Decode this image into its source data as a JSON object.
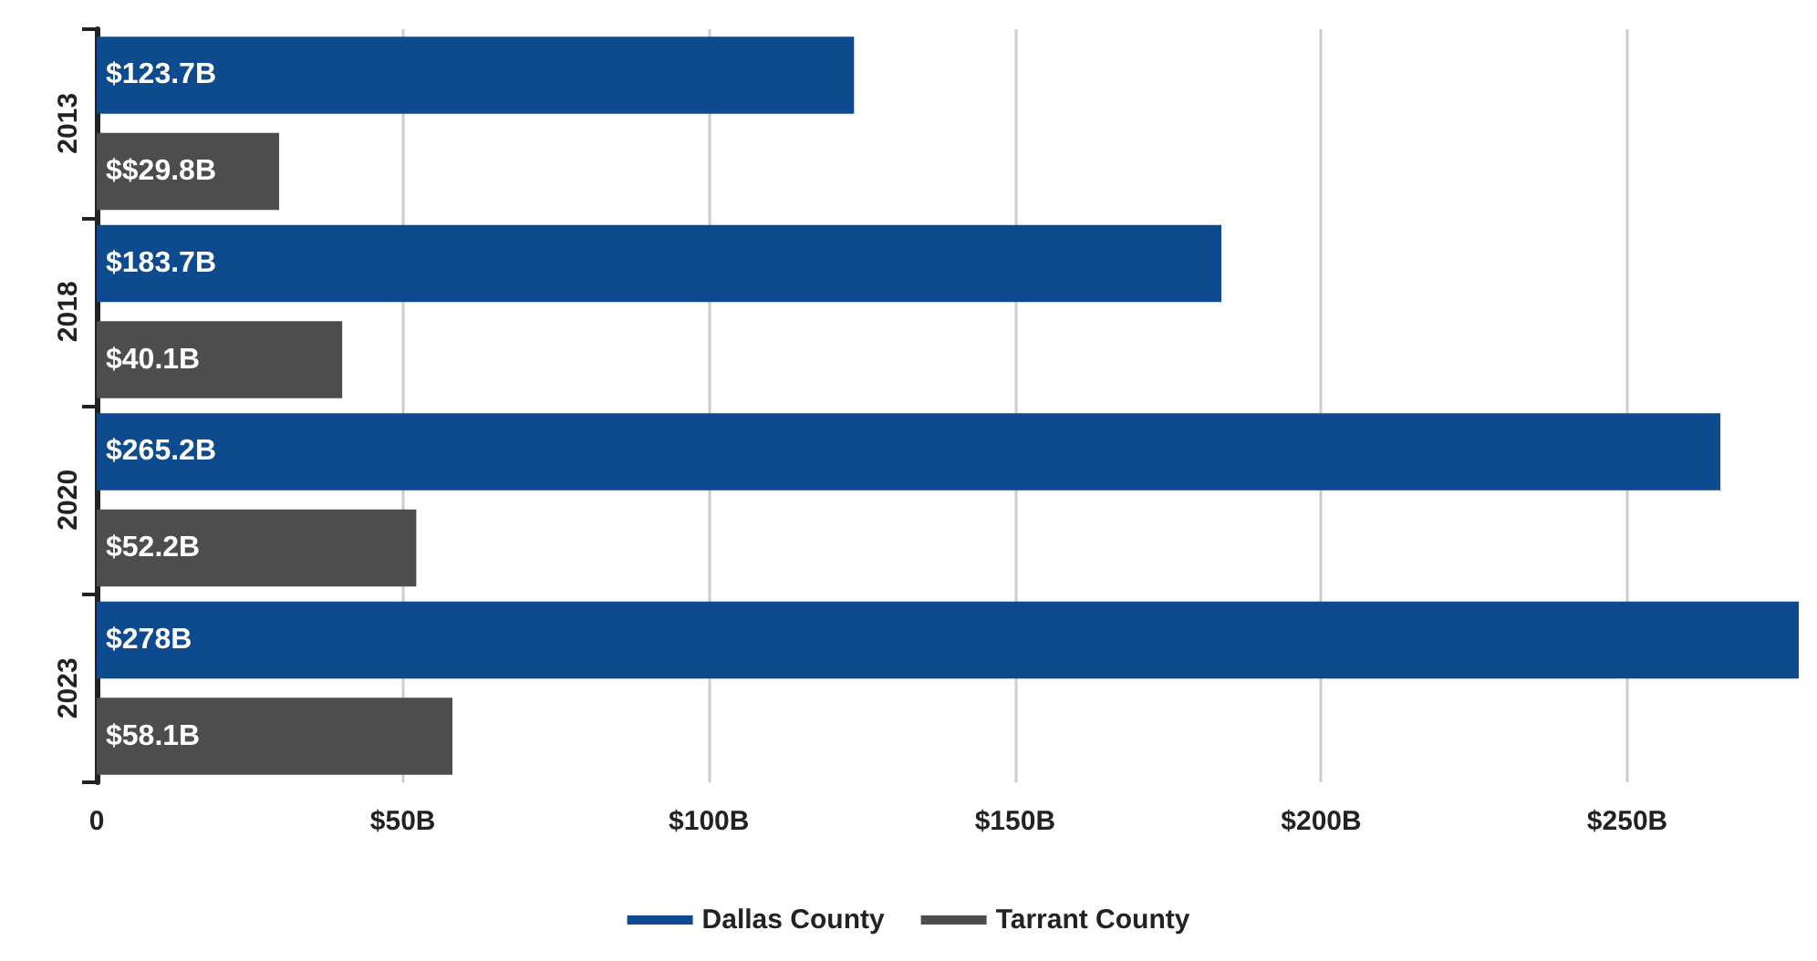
{
  "chart_data": {
    "type": "bar",
    "orientation": "horizontal",
    "categories": [
      "2013",
      "2018",
      "2020",
      "2023"
    ],
    "series": [
      {
        "name": "Dallas County",
        "color": "#0d4b8e",
        "values": [
          123.7,
          183.7,
          265.2,
          278
        ],
        "value_labels": [
          "$123.7B",
          "$183.7B",
          "$265.2B",
          "$278B"
        ]
      },
      {
        "name": "Tarrant County",
        "color": "#4d4d4d",
        "values": [
          29.8,
          40.1,
          52.2,
          58.1
        ],
        "value_labels": [
          "$$29.8B",
          "$40.1B",
          "$52.2B",
          "$58.1B"
        ]
      }
    ],
    "xlim": [
      0,
      278
    ],
    "xticks": [
      {
        "value": 0,
        "label": "0"
      },
      {
        "value": 50,
        "label": "$50B"
      },
      {
        "value": 100,
        "label": "$100B"
      },
      {
        "value": 150,
        "label": "$150B"
      },
      {
        "value": 200,
        "label": "$200B"
      },
      {
        "value": 250,
        "label": "$250B"
      }
    ],
    "grid": "x",
    "legend": "bottom"
  }
}
